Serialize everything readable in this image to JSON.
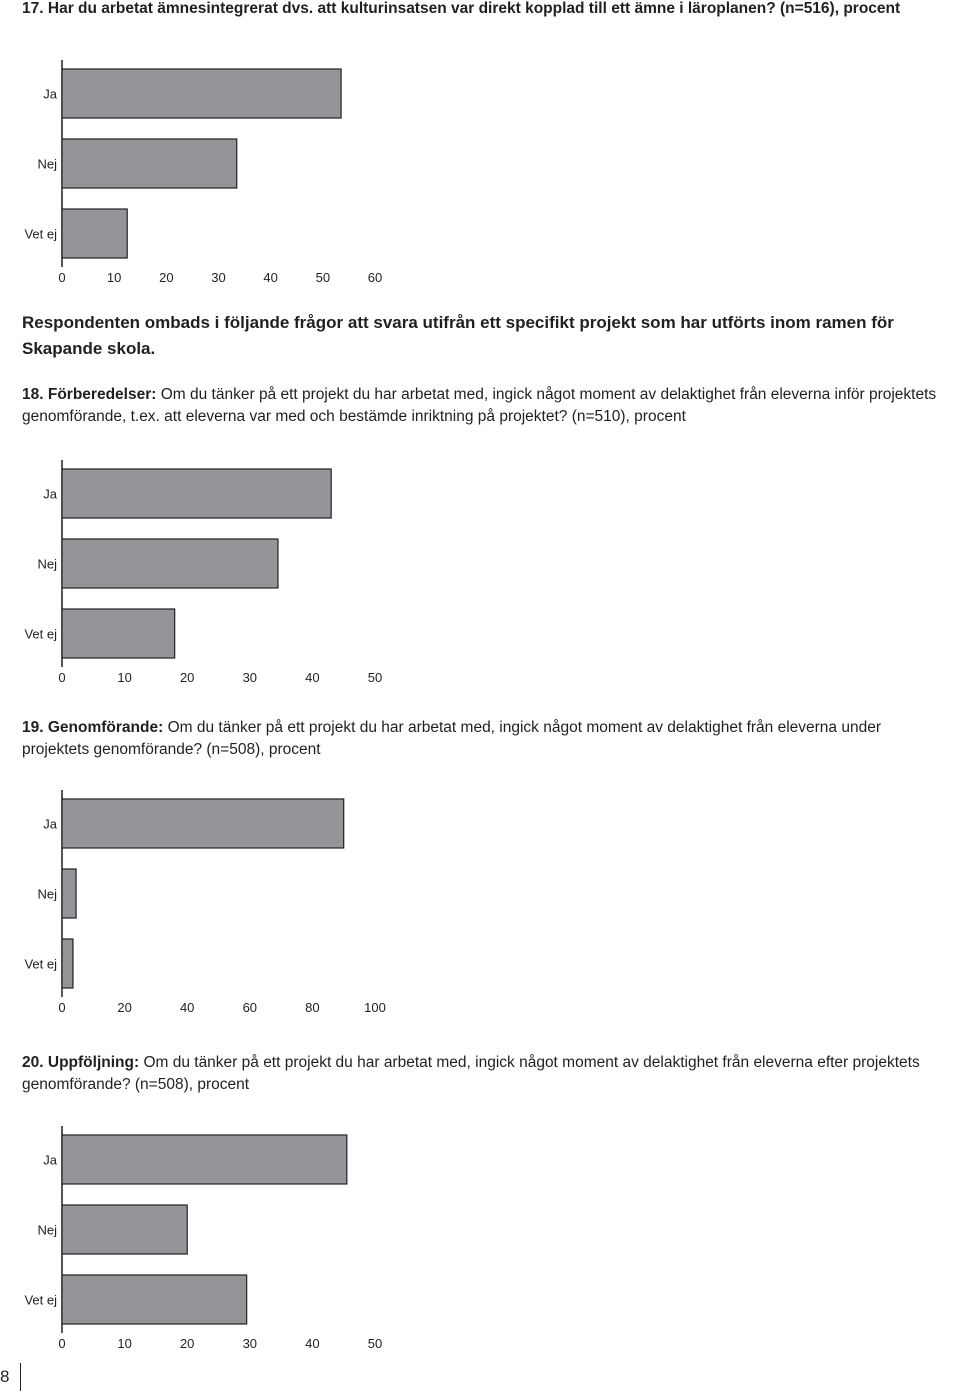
{
  "questions": [
    {
      "number": "17.",
      "heading": "Har du arbetat ämnesintegrerat dvs. att kulturinsatsen var direkt kopplad till ett ämne i läroplanen? (n=516), procent",
      "question_text": ""
    },
    {
      "number": "18.",
      "heading": "Förberedelser:",
      "question_text": "Om du tänker på ett projekt du har arbetat med, ingick något moment av delaktighet från eleverna inför projektets genomförande, t.ex. att eleverna var med och bestämde inriktning på projektet? (n=510), procent"
    },
    {
      "number": "19.",
      "heading": "Genomförande:",
      "question_text": "Om du tänker på ett projekt du har arbetat med, ingick något moment av delaktighet från eleverna under projektets genomförande? (n=508), procent"
    },
    {
      "number": "20.",
      "heading": "Uppföljning:",
      "question_text": "Om du tänker på ett projekt du har arbetat med, ingick något moment av delaktighet från eleverna efter projektets genomförande? (n=508), procent"
    }
  ],
  "intro": "Respondenten ombads i följande frågor att svara utifrån ett specifikt projekt som har utförts inom ramen för Skapande skola.",
  "page_number": "8",
  "colors": {
    "bar_fill": "#939598",
    "bar_stroke": "#231f20",
    "axis": "#231f20",
    "text": "#231f20"
  },
  "chart_data": [
    {
      "type": "bar",
      "orientation": "horizontal",
      "categories": [
        "Ja",
        "Nej",
        "Vet ej"
      ],
      "values": [
        53.5,
        33.5,
        12.5
      ],
      "xlim": [
        0,
        60
      ],
      "xticks": [
        0,
        10,
        20,
        30,
        40,
        50,
        60
      ],
      "title": "",
      "xlabel": "",
      "ylabel": "",
      "grid": false
    },
    {
      "type": "bar",
      "orientation": "horizontal",
      "categories": [
        "Ja",
        "Nej",
        "Vet ej"
      ],
      "values": [
        43,
        34.5,
        18
      ],
      "xlim": [
        0,
        50
      ],
      "xticks": [
        0,
        10,
        20,
        30,
        40,
        50
      ],
      "title": "",
      "xlabel": "",
      "ylabel": "",
      "grid": false
    },
    {
      "type": "bar",
      "orientation": "horizontal",
      "categories": [
        "Ja",
        "Nej",
        "Vet ej"
      ],
      "values": [
        90,
        4.5,
        3.5
      ],
      "xlim": [
        0,
        100
      ],
      "xticks": [
        0,
        20,
        40,
        60,
        80,
        100
      ],
      "title": "",
      "xlabel": "",
      "ylabel": "",
      "grid": false
    },
    {
      "type": "bar",
      "orientation": "horizontal",
      "categories": [
        "Ja",
        "Nej",
        "Vet ej"
      ],
      "values": [
        45.5,
        20,
        29.5
      ],
      "xlim": [
        0,
        50
      ],
      "xticks": [
        0,
        10,
        20,
        30,
        40,
        50
      ],
      "title": "",
      "xlabel": "",
      "ylabel": "",
      "grid": false
    }
  ]
}
